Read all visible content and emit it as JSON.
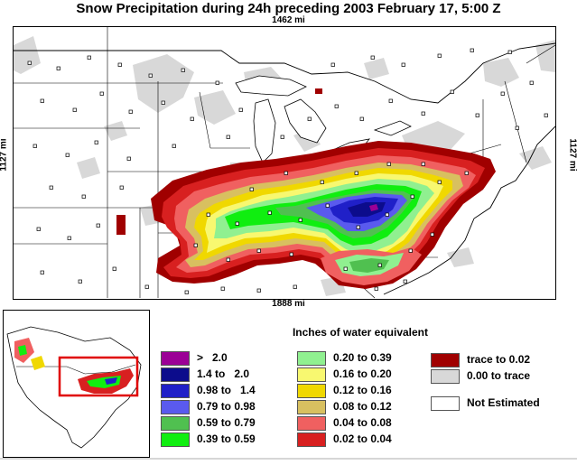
{
  "title": "Snow Precipitation during 24h preceding 2003 February 17, 5:00 Z",
  "dimensions": {
    "top": "1462 mi",
    "bottom": "1888 mi",
    "left": "1127 mi",
    "right": "1127 mi"
  },
  "legend": {
    "title": "Inches of water equivalent",
    "columns": [
      [
        {
          "label": ">   2.0",
          "color": "#9b0096"
        },
        {
          "label": "1.4 to   2.0",
          "color": "#0c0c8c"
        },
        {
          "label": "0.98 to   1.4",
          "color": "#2020c8"
        },
        {
          "label": "0.79 to 0.98",
          "color": "#5a5aee"
        },
        {
          "label": "0.59 to 0.79",
          "color": "#50c050"
        },
        {
          "label": "0.39 to 0.59",
          "color": "#10ee10"
        }
      ],
      [
        {
          "label": "0.20 to 0.39",
          "color": "#90f090"
        },
        {
          "label": "0.16 to 0.20",
          "color": "#f8f870"
        },
        {
          "label": "0.12 to 0.16",
          "color": "#f0d800"
        },
        {
          "label": "0.08 to 0.12",
          "color": "#d8c060"
        },
        {
          "label": "0.04 to 0.08",
          "color": "#f06060"
        },
        {
          "label": "0.02 to 0.04",
          "color": "#d82020"
        }
      ],
      [
        {
          "label": "trace to 0.02",
          "color": "#a00000"
        },
        {
          "label": "0.00 to trace",
          "color": "#d8d8d8"
        },
        {
          "label": "Not Estimated",
          "color": "#ffffff"
        }
      ]
    ]
  },
  "colors": {
    "trace": "#a00000",
    "zero": "#d8d8d8",
    "inset_highlight": "#e00000"
  }
}
